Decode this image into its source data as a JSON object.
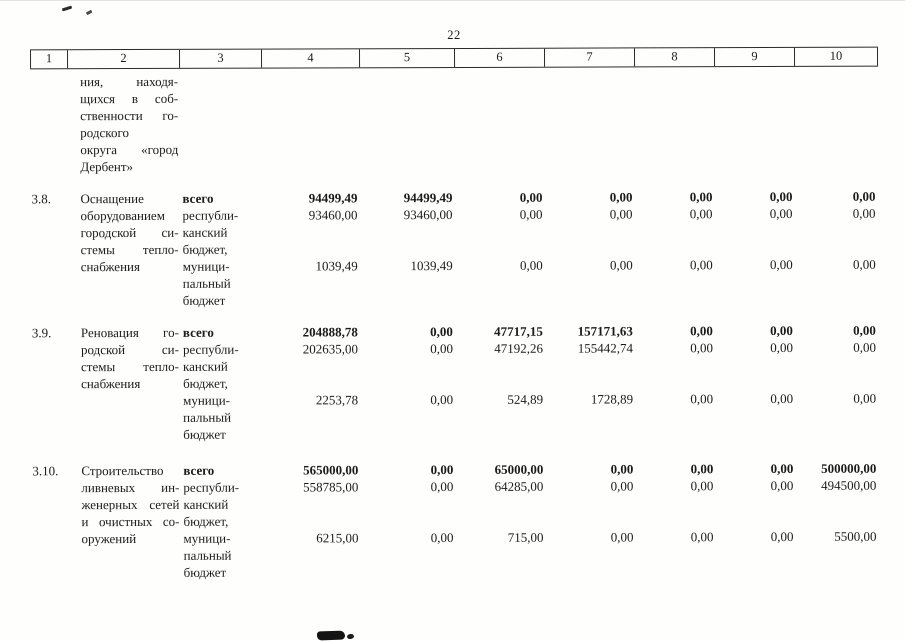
{
  "page": {
    "number": "22"
  },
  "table": {
    "header_cols": [
      "1",
      "2",
      "3",
      "4",
      "5",
      "6",
      "7",
      "8",
      "9",
      "10"
    ],
    "carryover_lines": [
      "ния, находя-",
      "щихся в соб-",
      "ственности го-",
      "родского",
      "округа «город",
      "Дербент»"
    ],
    "funding_labels": [
      "всего",
      "республи-",
      "канский",
      "бюджет,",
      "муници-",
      "пальный",
      "бюджет"
    ],
    "rows": [
      {
        "num": "3.8.",
        "name_lines": [
          "Оснащение",
          "оборудованием",
          "городской си-",
          "стемы тепло-",
          "снабжения"
        ],
        "values": {
          "total": [
            "94499,49",
            "94499,49",
            "0,00",
            "0,00",
            "0,00",
            "0,00",
            "0,00"
          ],
          "republican": [
            "93460,00",
            "93460,00",
            "0,00",
            "0,00",
            "0,00",
            "0,00",
            "0,00"
          ],
          "municipal": [
            "1039,49",
            "1039,49",
            "0,00",
            "0,00",
            "0,00",
            "0,00",
            "0,00"
          ]
        }
      },
      {
        "num": "3.9.",
        "name_lines": [
          "Реновация го-",
          "родской си-",
          "стемы тепло-",
          "снабжения"
        ],
        "values": {
          "total": [
            "204888,78",
            "0,00",
            "47717,15",
            "157171,63",
            "0,00",
            "0,00",
            "0,00"
          ],
          "republican": [
            "202635,00",
            "0,00",
            "47192,26",
            "155442,74",
            "0,00",
            "0,00",
            "0,00"
          ],
          "municipal": [
            "2253,78",
            "0,00",
            "524,89",
            "1728,89",
            "0,00",
            "0,00",
            "0,00"
          ]
        }
      },
      {
        "num": "3.10.",
        "name_lines": [
          "Строительство",
          "ливневых ин-",
          "женерных сетей",
          "и очистных со-",
          "оружений"
        ],
        "values": {
          "total": [
            "565000,00",
            "0,00",
            "65000,00",
            "0,00",
            "0,00",
            "0,00",
            "500000,00"
          ],
          "republican": [
            "558785,00",
            "0,00",
            "64285,00",
            "0,00",
            "0,00",
            "0,00",
            "494500,00"
          ],
          "municipal": [
            "6215,00",
            "0,00",
            "715,00",
            "0,00",
            "0,00",
            "0,00",
            "5500,00"
          ]
        }
      }
    ]
  }
}
